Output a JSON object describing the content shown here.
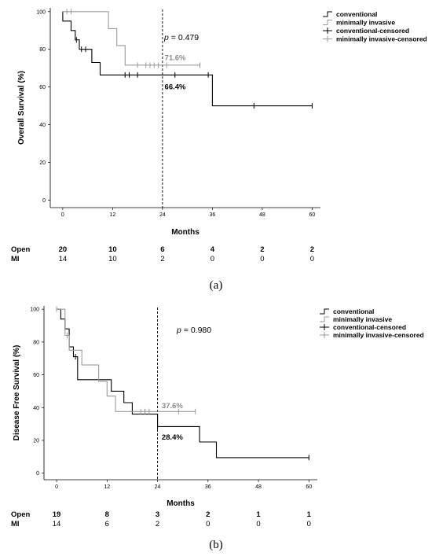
{
  "chart_data": [
    {
      "type": "line",
      "subtype": "kaplan-meier",
      "ylabel": "Overall Survival (%)",
      "xlabel": "Months",
      "xticks": [
        0,
        12,
        24,
        36,
        48,
        60
      ],
      "yticks": [
        0,
        20,
        40,
        60,
        80,
        100
      ],
      "xlim": [
        -3,
        62
      ],
      "ylim": [
        -4,
        102
      ],
      "legend_position": "top-right",
      "legend": [
        "conventional",
        "minimally invasive",
        "conventional-censored",
        "minimally invasive-censored"
      ],
      "p_text": "= 0.479",
      "reference_line_x": 24,
      "series": [
        {
          "name": "conventional",
          "color": "#000000",
          "steps": [
            [
              0,
              100
            ],
            [
              0,
              95
            ],
            [
              2,
              95
            ],
            [
              2,
              90
            ],
            [
              3,
              90
            ],
            [
              3,
              85
            ],
            [
              4,
              85
            ],
            [
              4,
              80
            ],
            [
              7,
              80
            ],
            [
              7,
              73
            ],
            [
              9,
              73
            ],
            [
              9,
              66.4
            ],
            [
              36,
              66.4
            ],
            [
              36,
              50
            ],
            [
              60,
              50
            ]
          ],
          "censored": [
            [
              3.3,
              85
            ],
            [
              4.5,
              80
            ],
            [
              5.5,
              80
            ],
            [
              15,
              66.4
            ],
            [
              16,
              66.4
            ],
            [
              18,
              66.4
            ],
            [
              27,
              66.4
            ],
            [
              35,
              66.4
            ],
            [
              46,
              50
            ],
            [
              60,
              50
            ]
          ],
          "annotation": {
            "text": "66.4%",
            "x": 24.5,
            "y": 60
          }
        },
        {
          "name": "minimally invasive",
          "color": "#9a9a9a",
          "steps": [
            [
              0,
              100
            ],
            [
              11,
              100
            ],
            [
              11,
              91
            ],
            [
              13,
              91
            ],
            [
              13,
              82
            ],
            [
              15,
              82
            ],
            [
              15,
              71.6
            ],
            [
              33,
              71.6
            ]
          ],
          "censored": [
            [
              1,
              100
            ],
            [
              2,
              100
            ],
            [
              18,
              71.6
            ],
            [
              20,
              71.6
            ],
            [
              21,
              71.6
            ],
            [
              22,
              71.6
            ],
            [
              23,
              71.6
            ],
            [
              25,
              71.6
            ],
            [
              33,
              71.6
            ]
          ],
          "annotation": {
            "text": "71.6%",
            "x": 24.5,
            "y": 75.5
          }
        }
      ],
      "risk_table": {
        "rows": [
          {
            "label": "Open",
            "values": [
              "20",
              "10",
              "6",
              "4",
              "2",
              "2"
            ]
          },
          {
            "label": "MI",
            "values": [
              "14",
              "10",
              "2",
              "0",
              "0",
              "0"
            ]
          }
        ]
      },
      "caption": "(a)"
    },
    {
      "type": "line",
      "subtype": "kaplan-meier",
      "ylabel": "Disease Free Survival (%)",
      "xlabel": "Months",
      "xticks": [
        0,
        12,
        24,
        36,
        48,
        60
      ],
      "yticks": [
        0,
        20,
        40,
        60,
        80,
        100
      ],
      "xlim": [
        -3,
        62
      ],
      "ylim": [
        -4,
        102
      ],
      "legend_position": "top-right",
      "legend": [
        "conventional",
        "minimally invasive",
        "conventional-censored",
        "minimally invasive-censored"
      ],
      "p_text": "= 0.980",
      "reference_line_x": 24,
      "series": [
        {
          "name": "conventional",
          "color": "#000000",
          "steps": [
            [
              0,
              100
            ],
            [
              1,
              100
            ],
            [
              1,
              94
            ],
            [
              2,
              94
            ],
            [
              2,
              88
            ],
            [
              3,
              88
            ],
            [
              3,
              77
            ],
            [
              4,
              77
            ],
            [
              4,
              71
            ],
            [
              5,
              71
            ],
            [
              5,
              57
            ],
            [
              13,
              57
            ],
            [
              13,
              50
            ],
            [
              16,
              50
            ],
            [
              16,
              43
            ],
            [
              18,
              43
            ],
            [
              18,
              36
            ],
            [
              24,
              36
            ],
            [
              24,
              28.4
            ],
            [
              34,
              28.4
            ],
            [
              34,
              19
            ],
            [
              38,
              19
            ],
            [
              38,
              9.5
            ],
            [
              60,
              9.5
            ]
          ],
          "censored": [
            [
              4.5,
              71
            ],
            [
              24,
              28.4
            ],
            [
              60,
              9.5
            ]
          ],
          "annotation": {
            "text": "28.4%",
            "x": 25,
            "y": 22
          }
        },
        {
          "name": "minimally invasive",
          "color": "#9a9a9a",
          "steps": [
            [
              0,
              100
            ],
            [
              2,
              100
            ],
            [
              2,
              84
            ],
            [
              3,
              84
            ],
            [
              3,
              75
            ],
            [
              6,
              75
            ],
            [
              6,
              66
            ],
            [
              10,
              66
            ],
            [
              10,
              56
            ],
            [
              12,
              56
            ],
            [
              12,
              47
            ],
            [
              14,
              47
            ],
            [
              14,
              37.6
            ],
            [
              33,
              37.6
            ]
          ],
          "censored": [
            [
              0,
              100
            ],
            [
              2.5,
              84
            ],
            [
              20,
              37.6
            ],
            [
              21,
              37.6
            ],
            [
              22,
              37.6
            ],
            [
              29,
              37.6
            ],
            [
              33,
              37.6
            ]
          ],
          "annotation": {
            "text": "37.6%",
            "x": 25,
            "y": 41
          }
        }
      ],
      "risk_table": {
        "rows": [
          {
            "label": "Open",
            "values": [
              "19",
              "8",
              "3",
              "2",
              "1",
              "1"
            ]
          },
          {
            "label": "MI",
            "values": [
              "14",
              "6",
              "2",
              "0",
              "0",
              "0"
            ]
          }
        ]
      },
      "caption": "(b)"
    }
  ]
}
